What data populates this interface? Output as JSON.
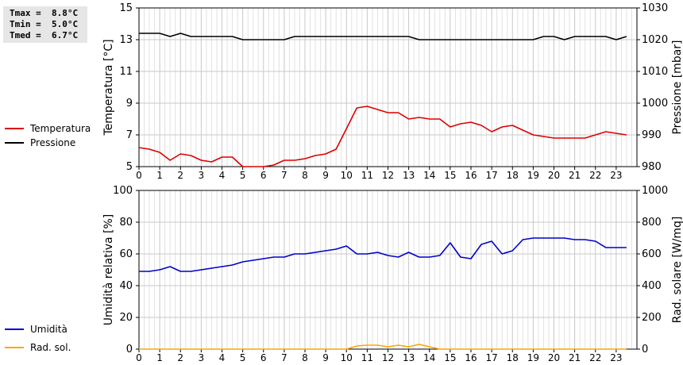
{
  "stats": {
    "tmax": "Tmax =  8.8°C",
    "tmin": "Tmin =  5.0°C",
    "tmed": "Tmed =  6.7°C"
  },
  "chart_data": [
    {
      "type": "line",
      "x": [
        0,
        0.5,
        1,
        1.5,
        2,
        2.5,
        3,
        3.5,
        4,
        4.5,
        5,
        5.5,
        6,
        6.5,
        7,
        7.5,
        8,
        8.5,
        9,
        9.5,
        10,
        10.5,
        11,
        11.5,
        12,
        12.5,
        13,
        13.5,
        14,
        14.5,
        15,
        15.5,
        16,
        16.5,
        17,
        17.5,
        18,
        18.5,
        19,
        19.5,
        20,
        20.5,
        21,
        21.5,
        22,
        22.5,
        23,
        23.5
      ],
      "xticks": [
        0,
        1,
        2,
        3,
        4,
        5,
        6,
        7,
        8,
        9,
        10,
        11,
        12,
        13,
        14,
        15,
        16,
        17,
        18,
        19,
        20,
        21,
        22,
        23
      ],
      "xlim": [
        0,
        24
      ],
      "ylabel": "Temperatura [°C]",
      "ylim": [
        5,
        15
      ],
      "yticks": [
        5,
        7,
        9,
        11,
        13,
        15
      ],
      "y2label": "Pressione [mbar]",
      "y2lim": [
        980,
        1030
      ],
      "y2ticks": [
        980,
        990,
        1000,
        1010,
        1020,
        1030
      ],
      "legend_position": "left",
      "series": [
        {
          "name": "Temperatura",
          "axis": "left",
          "color": "#dd0000",
          "values": [
            6.2,
            6.1,
            5.9,
            5.4,
            5.8,
            5.7,
            5.4,
            5.3,
            5.6,
            5.6,
            5.0,
            5.0,
            5.0,
            5.1,
            5.4,
            5.4,
            5.5,
            5.7,
            5.8,
            6.1,
            7.4,
            8.7,
            8.8,
            8.6,
            8.4,
            8.4,
            8.0,
            8.1,
            8.0,
            8.0,
            7.5,
            7.7,
            7.8,
            7.6,
            7.2,
            7.5,
            7.6,
            7.3,
            7.0,
            6.9,
            6.8,
            6.8,
            6.8,
            6.8,
            7.0,
            7.2,
            7.1,
            7.0
          ]
        },
        {
          "name": "Pressione",
          "axis": "right",
          "color": "#000000",
          "values": [
            1022,
            1022,
            1022,
            1021,
            1022,
            1021,
            1021,
            1021,
            1021,
            1021,
            1020,
            1020,
            1020,
            1020,
            1020,
            1021,
            1021,
            1021,
            1021,
            1021,
            1021,
            1021,
            1021,
            1021,
            1021,
            1021,
            1021,
            1020,
            1020,
            1020,
            1020,
            1020,
            1020,
            1020,
            1020,
            1020,
            1020,
            1020,
            1020,
            1021,
            1021,
            1020,
            1021,
            1021,
            1021,
            1021,
            1020,
            1021
          ]
        }
      ]
    },
    {
      "type": "line",
      "x": [
        0,
        0.5,
        1,
        1.5,
        2,
        2.5,
        3,
        3.5,
        4,
        4.5,
        5,
        5.5,
        6,
        6.5,
        7,
        7.5,
        8,
        8.5,
        9,
        9.5,
        10,
        10.5,
        11,
        11.5,
        12,
        12.5,
        13,
        13.5,
        14,
        14.5,
        15,
        15.5,
        16,
        16.5,
        17,
        17.5,
        18,
        18.5,
        19,
        19.5,
        20,
        20.5,
        21,
        21.5,
        22,
        22.5,
        23,
        23.5
      ],
      "xticks": [
        0,
        1,
        2,
        3,
        4,
        5,
        6,
        7,
        8,
        9,
        10,
        11,
        12,
        13,
        14,
        15,
        16,
        17,
        18,
        19,
        20,
        21,
        22,
        23
      ],
      "xlim": [
        0,
        24
      ],
      "ylabel": "Umidità relativa [%]",
      "ylim": [
        0,
        100
      ],
      "yticks": [
        0,
        20,
        40,
        60,
        80,
        100
      ],
      "y2label": "Rad. solare [W/mq]",
      "y2lim": [
        0,
        1000
      ],
      "y2ticks": [
        0,
        200,
        400,
        600,
        800,
        1000
      ],
      "legend_position": "left",
      "series": [
        {
          "name": "Umidità",
          "axis": "left",
          "color": "#0000cc",
          "values": [
            49,
            49,
            50,
            52,
            49,
            49,
            50,
            51,
            52,
            53,
            55,
            56,
            57,
            58,
            58,
            60,
            60,
            61,
            62,
            63,
            65,
            60,
            60,
            61,
            59,
            58,
            61,
            58,
            58,
            59,
            67,
            58,
            57,
            66,
            68,
            60,
            62,
            69,
            70,
            70,
            70,
            70,
            69,
            69,
            68,
            64,
            64,
            64
          ]
        },
        {
          "name": "Rad. sol.",
          "axis": "right",
          "color": "#ffa500",
          "values": [
            0,
            0,
            0,
            0,
            0,
            0,
            0,
            0,
            0,
            0,
            0,
            0,
            0,
            0,
            0,
            0,
            0,
            0,
            0,
            0,
            0,
            20,
            25,
            25,
            15,
            25,
            15,
            30,
            15,
            0,
            0,
            0,
            0,
            0,
            0,
            0,
            0,
            0,
            0,
            0,
            0,
            0,
            0,
            0,
            0,
            0,
            0,
            0
          ]
        }
      ]
    }
  ]
}
